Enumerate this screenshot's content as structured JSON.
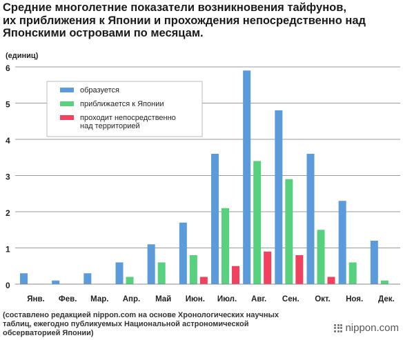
{
  "title_lines": [
    "Средние многолетние показатели возникновения тайфунов,",
    "их приближения к Японии и прохождения непосредственно над",
    "Японскими островами по месяцам."
  ],
  "source_lines": [
    "(составлено редакцией nippon.com на основе Хронологических научных",
    "таблиц, ежегодно публикуемых Национальной астрономической",
    "обсерваторией Японии)"
  ],
  "brand": "nippon.com",
  "colors": {
    "formed": "#5b9bdc",
    "approach": "#57d17e",
    "landfall": "#f0425f",
    "grid": "#9a9a9a"
  },
  "chart_data": {
    "type": "bar",
    "unit_label": "(единиц)",
    "ylim": [
      0,
      6
    ],
    "y_ticks": [
      "0",
      "1",
      "2",
      "3",
      "4",
      "5",
      "6"
    ],
    "categories": [
      "Янв.",
      "Фев.",
      "Мар.",
      "Апр.",
      "Май",
      "Июн.",
      "Июл.",
      "Авг.",
      "Сен.",
      "Окт.",
      "Ноя.",
      "Дек."
    ],
    "series": [
      {
        "name": "образуется",
        "color_key": "formed",
        "values": [
          0.3,
          0.1,
          0.3,
          0.6,
          1.1,
          1.7,
          3.6,
          5.9,
          4.8,
          3.6,
          2.3,
          1.2
        ]
      },
      {
        "name": "приближается к Японии",
        "color_key": "approach",
        "values": [
          0,
          0,
          0,
          0.2,
          0.6,
          0.8,
          2.1,
          3.4,
          2.9,
          1.5,
          0.6,
          0.1
        ]
      },
      {
        "name": "проходит непосредственно\nнад территорией",
        "color_key": "landfall",
        "values": [
          0,
          0,
          0,
          0,
          0,
          0.2,
          0.5,
          0.9,
          0.8,
          0.2,
          0,
          0
        ]
      }
    ],
    "grid": true,
    "legend_position": "top-left"
  }
}
